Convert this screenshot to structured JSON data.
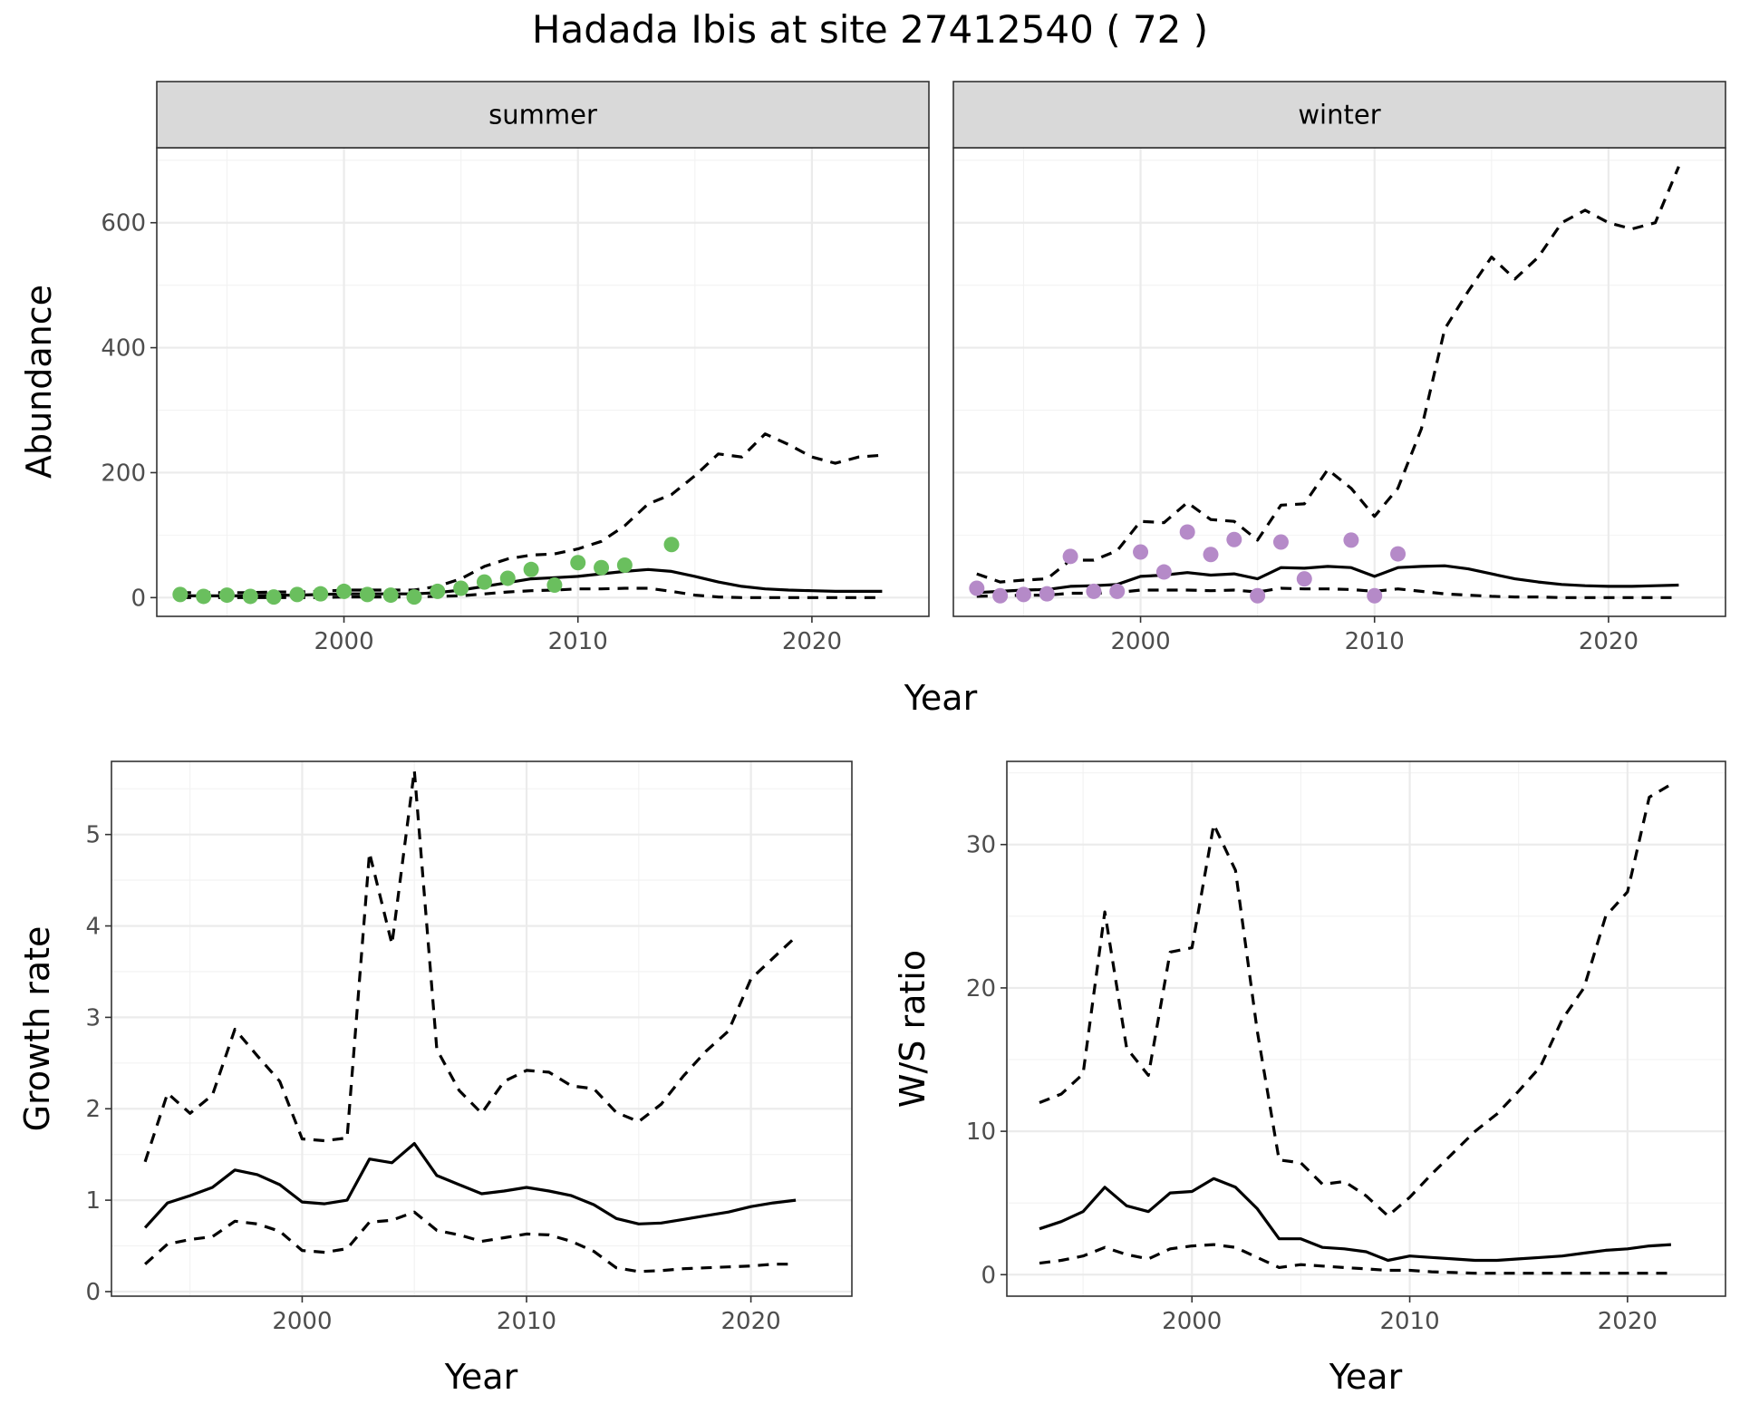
{
  "title": "Hadada Ibis at site 27412540 ( 72 )",
  "colors": {
    "summer_points": "#6abf5e",
    "winter_points": "#b58ac8",
    "lines": "#000000"
  },
  "chart_data": [
    {
      "id": "abundance",
      "type": "line",
      "ylabel": "Abundance",
      "xlabel": "Year",
      "xlim": [
        1992,
        2025
      ],
      "ylim": [
        -30,
        720
      ],
      "x_ticks": [
        2000,
        2010,
        2020
      ],
      "y_ticks": [
        0,
        200,
        400,
        600
      ],
      "facets": [
        {
          "label": "summer",
          "points": {
            "x": [
              1993,
              1994,
              1995,
              1996,
              1997,
              1998,
              1999,
              2000,
              2001,
              2002,
              2003,
              2004,
              2005,
              2006,
              2007,
              2008,
              2009,
              2010,
              2011,
              2012,
              2014
            ],
            "y": [
              5,
              2,
              4,
              2,
              1,
              5,
              6,
              10,
              5,
              4,
              1,
              10,
              15,
              25,
              31,
              45,
              20,
              56,
              48,
              52,
              85
            ]
          },
          "series": [
            {
              "style": "solid",
              "x": [
                1993,
                1994,
                1995,
                1996,
                1997,
                1998,
                1999,
                2000,
                2001,
                2002,
                2003,
                2004,
                2005,
                2006,
                2007,
                2008,
                2009,
                2010,
                2011,
                2012,
                2013,
                2014,
                2015,
                2016,
                2017,
                2018,
                2019,
                2020,
                2021,
                2022,
                2023
              ],
              "y": [
                3,
                3,
                3,
                3,
                4,
                4,
                5,
                6,
                6,
                6,
                6,
                8,
                12,
                18,
                24,
                30,
                32,
                34,
                38,
                42,
                45,
                42,
                34,
                25,
                18,
                14,
                12,
                11,
                10,
                10,
                10
              ]
            },
            {
              "style": "dashed",
              "x": [
                1993,
                1994,
                1995,
                1996,
                1997,
                1998,
                1999,
                2000,
                2001,
                2002,
                2003,
                2004,
                2005,
                2006,
                2007,
                2008,
                2009,
                2010,
                2011,
                2012,
                2013,
                2014,
                2015,
                2016,
                2017,
                2018,
                2019,
                2020,
                2021,
                2022,
                2023
              ],
              "y": [
                8,
                8,
                8,
                8,
                9,
                9,
                10,
                12,
                12,
                12,
                12,
                18,
                30,
                50,
                62,
                68,
                70,
                78,
                90,
                115,
                150,
                165,
                195,
                230,
                225,
                262,
                245,
                225,
                215,
                225,
                228
              ]
            },
            {
              "style": "dashed",
              "x": [
                1993,
                1994,
                1995,
                1996,
                1997,
                1998,
                1999,
                2000,
                2001,
                2002,
                2003,
                2004,
                2005,
                2006,
                2007,
                2008,
                2009,
                2010,
                2011,
                2012,
                2013,
                2014,
                2015,
                2016,
                2017,
                2018,
                2019,
                2020,
                2021,
                2022,
                2023
              ],
              "y": [
                0,
                0,
                0,
                0,
                0,
                0,
                0,
                1,
                1,
                1,
                1,
                2,
                3,
                6,
                9,
                11,
                12,
                14,
                14,
                15,
                15,
                10,
                4,
                1,
                0,
                0,
                0,
                0,
                0,
                0,
                0
              ]
            }
          ]
        },
        {
          "label": "winter",
          "points": {
            "x": [
              1993,
              1994,
              1995,
              1996,
              1997,
              1998,
              1999,
              2000,
              2001,
              2002,
              2003,
              2004,
              2005,
              2006,
              2007,
              2009,
              2010,
              2011
            ],
            "y": [
              15,
              3,
              5,
              6,
              66,
              10,
              10,
              73,
              41,
              105,
              69,
              93,
              3,
              89,
              30,
              92,
              3,
              70
            ]
          },
          "series": [
            {
              "style": "solid",
              "x": [
                1993,
                1994,
                1995,
                1996,
                1997,
                1998,
                1999,
                2000,
                2001,
                2002,
                2003,
                2004,
                2005,
                2006,
                2007,
                2008,
                2009,
                2010,
                2011,
                2012,
                2013,
                2014,
                2015,
                2016,
                2017,
                2018,
                2019,
                2020,
                2021,
                2022,
                2023
              ],
              "y": [
                8,
                10,
                12,
                13,
                18,
                19,
                21,
                34,
                36,
                40,
                36,
                38,
                30,
                48,
                47,
                50,
                48,
                34,
                48,
                50,
                51,
                46,
                38,
                30,
                25,
                21,
                19,
                18,
                18,
                19,
                20
              ]
            },
            {
              "style": "dashed",
              "x": [
                1993,
                1994,
                1995,
                1996,
                1997,
                1998,
                1999,
                2000,
                2001,
                2002,
                2003,
                2004,
                2005,
                2006,
                2007,
                2008,
                2009,
                2010,
                2011,
                2012,
                2013,
                2014,
                2015,
                2016,
                2017,
                2018,
                2019,
                2020,
                2021,
                2022,
                2023
              ],
              "y": [
                38,
                25,
                28,
                30,
                60,
                60,
                75,
                122,
                120,
                152,
                125,
                122,
                92,
                148,
                150,
                205,
                175,
                130,
                175,
                270,
                430,
                490,
                545,
                510,
                545,
                600,
                620,
                600,
                590,
                600,
                690
              ]
            },
            {
              "style": "dashed",
              "x": [
                1993,
                1994,
                1995,
                1996,
                1997,
                1998,
                1999,
                2000,
                2001,
                2002,
                2003,
                2004,
                2005,
                2006,
                2007,
                2008,
                2009,
                2010,
                2011,
                2012,
                2013,
                2014,
                2015,
                2016,
                2017,
                2018,
                2019,
                2020,
                2021,
                2022,
                2023
              ],
              "y": [
                2,
                3,
                4,
                4,
                7,
                7,
                8,
                12,
                12,
                12,
                11,
                12,
                9,
                15,
                14,
                14,
                13,
                10,
                14,
                10,
                6,
                4,
                2,
                1,
                1,
                0,
                0,
                0,
                0,
                0,
                0
              ]
            }
          ]
        }
      ]
    },
    {
      "id": "growth",
      "type": "line",
      "ylabel": "Growth rate",
      "xlabel": "Year",
      "xlim": [
        1991.5,
        2024.5
      ],
      "ylim": [
        -0.05,
        5.8
      ],
      "x_ticks": [
        2000,
        2010,
        2020
      ],
      "y_ticks": [
        0,
        1,
        2,
        3,
        4,
        5
      ],
      "series": [
        {
          "style": "solid",
          "x": [
            1993,
            1994,
            1995,
            1996,
            1997,
            1998,
            1999,
            2000,
            2001,
            2002,
            2003,
            2004,
            2005,
            2006,
            2007,
            2008,
            2009,
            2010,
            2011,
            2012,
            2013,
            2014,
            2015,
            2016,
            2017,
            2018,
            2019,
            2020,
            2021,
            2022
          ],
          "y": [
            0.7,
            0.97,
            1.05,
            1.14,
            1.33,
            1.28,
            1.17,
            0.98,
            0.96,
            1.0,
            1.45,
            1.41,
            1.62,
            1.27,
            1.17,
            1.07,
            1.1,
            1.14,
            1.1,
            1.05,
            0.95,
            0.8,
            0.74,
            0.75,
            0.79,
            0.83,
            0.87,
            0.93,
            0.97,
            1.0
          ]
        },
        {
          "style": "dashed",
          "x": [
            1993,
            1994,
            1995,
            1996,
            1997,
            1998,
            1999,
            2000,
            2001,
            2002,
            2003,
            2004,
            2005,
            2006,
            2007,
            2008,
            2009,
            2010,
            2011,
            2012,
            2013,
            2014,
            2015,
            2016,
            2017,
            2018,
            2019,
            2020,
            2021,
            2022
          ],
          "y": [
            1.42,
            2.17,
            1.95,
            2.15,
            2.87,
            2.58,
            2.3,
            1.67,
            1.65,
            1.68,
            4.8,
            3.8,
            5.7,
            2.65,
            2.2,
            1.95,
            2.3,
            2.42,
            2.4,
            2.25,
            2.22,
            1.96,
            1.86,
            2.05,
            2.36,
            2.63,
            2.85,
            3.42,
            3.65,
            3.88
          ]
        },
        {
          "style": "dashed",
          "x": [
            1993,
            1994,
            1995,
            1996,
            1997,
            1998,
            1999,
            2000,
            2001,
            2002,
            2003,
            2004,
            2005,
            2006,
            2007,
            2008,
            2009,
            2010,
            2011,
            2012,
            2013,
            2014,
            2015,
            2016,
            2017,
            2018,
            2019,
            2020,
            2021,
            2022
          ],
          "y": [
            0.3,
            0.52,
            0.57,
            0.6,
            0.77,
            0.74,
            0.66,
            0.45,
            0.43,
            0.47,
            0.76,
            0.78,
            0.87,
            0.67,
            0.62,
            0.55,
            0.59,
            0.63,
            0.62,
            0.55,
            0.44,
            0.26,
            0.22,
            0.23,
            0.25,
            0.26,
            0.27,
            0.28,
            0.3,
            0.3
          ]
        }
      ]
    },
    {
      "id": "ws_ratio",
      "type": "line",
      "ylabel": "W/S ratio",
      "xlabel": "Year",
      "xlim": [
        1991.5,
        2024.5
      ],
      "ylim": [
        -1.5,
        35.8
      ],
      "x_ticks": [
        2000,
        2010,
        2020
      ],
      "y_ticks": [
        0,
        10,
        20,
        30
      ],
      "series": [
        {
          "style": "solid",
          "x": [
            1993,
            1994,
            1995,
            1996,
            1997,
            1998,
            1999,
            2000,
            2001,
            2002,
            2003,
            2004,
            2005,
            2006,
            2007,
            2008,
            2009,
            2010,
            2011,
            2012,
            2013,
            2014,
            2015,
            2016,
            2017,
            2018,
            2019,
            2020,
            2021,
            2022
          ],
          "y": [
            3.2,
            3.7,
            4.4,
            6.1,
            4.8,
            4.4,
            5.7,
            5.8,
            6.7,
            6.1,
            4.6,
            2.5,
            2.5,
            1.9,
            1.8,
            1.6,
            1.0,
            1.3,
            1.2,
            1.1,
            1.0,
            1.0,
            1.1,
            1.2,
            1.3,
            1.5,
            1.7,
            1.8,
            2.0,
            2.1
          ]
        },
        {
          "style": "dashed",
          "x": [
            1993,
            1994,
            1995,
            1996,
            1997,
            1998,
            1999,
            2000,
            2001,
            2002,
            2003,
            2004,
            2005,
            2006,
            2007,
            2008,
            2009,
            2010,
            2011,
            2012,
            2013,
            2014,
            2015,
            2016,
            2017,
            2018,
            2019,
            2020,
            2021,
            2022
          ],
          "y": [
            12.0,
            12.6,
            14.0,
            25.3,
            15.8,
            13.9,
            22.5,
            22.8,
            31.4,
            28.2,
            17.0,
            8.0,
            7.8,
            6.3,
            6.5,
            5.5,
            4.1,
            5.4,
            7.0,
            8.5,
            10.0,
            11.2,
            12.8,
            14.5,
            17.8,
            20.0,
            25.0,
            26.7,
            33.3,
            34.2
          ]
        },
        {
          "style": "dashed",
          "x": [
            1993,
            1994,
            1995,
            1996,
            1997,
            1998,
            1999,
            2000,
            2001,
            2002,
            2003,
            2004,
            2005,
            2006,
            2007,
            2008,
            2009,
            2010,
            2011,
            2012,
            2013,
            2014,
            2015,
            2016,
            2017,
            2018,
            2019,
            2020,
            2021,
            2022
          ],
          "y": [
            0.8,
            1.0,
            1.3,
            1.9,
            1.4,
            1.1,
            1.8,
            2.0,
            2.1,
            1.9,
            1.2,
            0.5,
            0.7,
            0.6,
            0.5,
            0.4,
            0.3,
            0.3,
            0.2,
            0.15,
            0.1,
            0.1,
            0.1,
            0.1,
            0.1,
            0.1,
            0.1,
            0.1,
            0.1,
            0.1
          ]
        }
      ]
    }
  ]
}
